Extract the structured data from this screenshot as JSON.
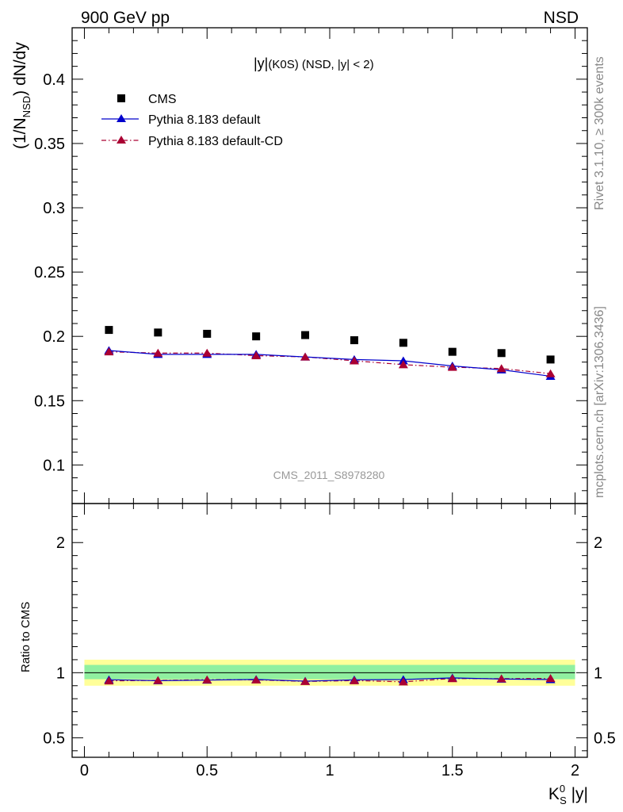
{
  "header": {
    "left": "900 GeV pp",
    "right": "NSD"
  },
  "side": {
    "rivet": "Rivet 3.1.10, ≥ 300k events",
    "source": "mcplots.cern.ch [arXiv:1306.3436]"
  },
  "watermark": "CMS_2011_S8978280",
  "colors": {
    "cms": "#000000",
    "default": "#0000cc",
    "cd": "#aa0033",
    "band_inner": "#90f0a0",
    "band_outer": "#ffff99"
  },
  "chart_data": [
    {
      "type": "scatter",
      "title": "|y|(K0S) (NSD, |y| < 2)",
      "title_main": "|y|",
      "title_sub": "(K0S)",
      "title_rest": " (NSD, |y| < 2)",
      "ylabel": "(1/N_NSD) dN/dy",
      "ylabel_a": "(1/N",
      "ylabel_sub": "NSD",
      "ylabel_b": ") dN/dy",
      "xlim": [
        -0.05,
        2.05
      ],
      "ylim": [
        0.07,
        0.44
      ],
      "yticks": [
        0.1,
        0.15,
        0.2,
        0.25,
        0.3,
        0.35,
        0.4
      ],
      "ytick_labels": [
        "0.1",
        "0.15",
        "0.2",
        "0.25",
        "0.3",
        "0.35",
        "0.4"
      ],
      "x": [
        0.1,
        0.3,
        0.5,
        0.7,
        0.9,
        1.1,
        1.3,
        1.5,
        1.7,
        1.9
      ],
      "series": [
        {
          "name": "CMS",
          "style": "square",
          "values": [
            0.205,
            0.203,
            0.202,
            0.2,
            0.201,
            0.197,
            0.195,
            0.188,
            0.187,
            0.182
          ]
        },
        {
          "name": "Pythia 8.183 default",
          "style": "solid",
          "values": [
            0.189,
            0.186,
            0.186,
            0.186,
            0.184,
            0.182,
            0.181,
            0.177,
            0.174,
            0.169
          ]
        },
        {
          "name": "Pythia 8.183 default-CD",
          "style": "dashdot",
          "values": [
            0.188,
            0.187,
            0.187,
            0.185,
            0.184,
            0.181,
            0.178,
            0.176,
            0.175,
            0.171
          ]
        }
      ]
    },
    {
      "type": "line",
      "ylabel": "Ratio to CMS",
      "xlabel": "K_S^0 |y|",
      "xlabel_a": "K",
      "xlabel_sup": "0",
      "xlabel_sub": "S",
      "xlabel_b": " |y|",
      "xlim": [
        -0.05,
        2.05
      ],
      "ylim": [
        0.35,
        2.3
      ],
      "xticks": [
        0,
        0.5,
        1,
        1.5,
        2
      ],
      "xtick_labels": [
        "0",
        "0.5",
        "1",
        "1.5",
        "2"
      ],
      "yticks": [
        0.5,
        1,
        2
      ],
      "ytick_labels": [
        "0.5",
        "1",
        "2"
      ],
      "bands": [
        {
          "name": "total uncertainty",
          "low": 0.9,
          "high": 1.1
        },
        {
          "name": "stat uncertainty",
          "low": 0.95,
          "high": 1.06
        }
      ],
      "x": [
        0.1,
        0.3,
        0.5,
        0.7,
        0.9,
        1.1,
        1.3,
        1.5,
        1.7,
        1.9
      ],
      "series": [
        {
          "name": "Pythia 8.183 default",
          "values": [
            0.946,
            0.939,
            0.943,
            0.948,
            0.935,
            0.945,
            0.947,
            0.96,
            0.951,
            0.947
          ]
        },
        {
          "name": "Pythia 8.183 default-CD",
          "values": [
            0.937,
            0.941,
            0.946,
            0.945,
            0.933,
            0.939,
            0.93,
            0.955,
            0.954,
            0.956
          ]
        }
      ]
    }
  ]
}
